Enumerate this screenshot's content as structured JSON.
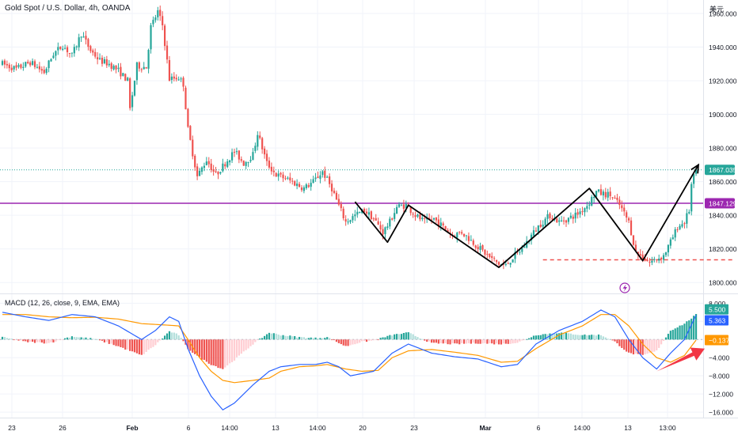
{
  "header": {
    "symbol_title": "Gold Spot / U.S. Dollar, 4h, OANDA",
    "currency": "美元"
  },
  "colors": {
    "up": "#26a69a",
    "down": "#ef5350",
    "up_soft": "#b2dfdb",
    "down_soft": "#ffcdd2",
    "macd_line": "#2962ff",
    "signal_line": "#ff9800",
    "level": "#9c27b0",
    "grid": "#f0f3fa"
  },
  "chart_data": [
    {
      "type": "candlestick",
      "title": "Gold Spot / U.S. Dollar, 4h, OANDA",
      "x_tick_labels": [
        "23",
        "26",
        "Feb",
        "6",
        "14:00",
        "13",
        "14:00",
        "20",
        "23",
        "Mar",
        "6",
        "14:00",
        "13",
        "13:00"
      ],
      "y_ticks": [
        1800,
        1820,
        1840,
        1860,
        1880,
        1900,
        1920,
        1940,
        1960
      ],
      "y_tick_labels": [
        "1800.000",
        "1820.000",
        "1840.000",
        "1860.000",
        "1880.000",
        "1900.000",
        "1920.000",
        "1940.000",
        "1960.000"
      ],
      "ylim": [
        1794,
        1968
      ],
      "price_path": [
        [
          0,
          1930
        ],
        [
          6,
          1927
        ],
        [
          12,
          1931
        ],
        [
          18,
          1925
        ],
        [
          22,
          1936
        ],
        [
          26,
          1941
        ],
        [
          30,
          1935
        ],
        [
          34,
          1948
        ],
        [
          38,
          1938
        ],
        [
          42,
          1932
        ],
        [
          46,
          1930
        ],
        [
          50,
          1926
        ],
        [
          54,
          1920
        ],
        [
          55,
          1903
        ],
        [
          58,
          1929
        ],
        [
          62,
          1928
        ],
        [
          64,
          1952
        ],
        [
          67,
          1961
        ],
        [
          69,
          1953
        ],
        [
          72,
          1921
        ],
        [
          76,
          1922
        ],
        [
          78,
          1918
        ],
        [
          80,
          1891
        ],
        [
          84,
          1863
        ],
        [
          88,
          1873
        ],
        [
          92,
          1864
        ],
        [
          96,
          1871
        ],
        [
          100,
          1878
        ],
        [
          104,
          1871
        ],
        [
          108,
          1876
        ],
        [
          110,
          1889
        ],
        [
          114,
          1871
        ],
        [
          118,
          1864
        ],
        [
          122,
          1862
        ],
        [
          126,
          1859
        ],
        [
          130,
          1856
        ],
        [
          134,
          1860
        ],
        [
          138,
          1866
        ],
        [
          142,
          1856
        ],
        [
          144,
          1849
        ],
        [
          148,
          1836
        ],
        [
          152,
          1840
        ],
        [
          156,
          1843
        ],
        [
          160,
          1838
        ],
        [
          164,
          1830
        ],
        [
          167,
          1836
        ],
        [
          170,
          1845
        ],
        [
          174,
          1846
        ],
        [
          178,
          1840
        ],
        [
          182,
          1836
        ],
        [
          186,
          1838
        ],
        [
          190,
          1833
        ],
        [
          194,
          1828
        ],
        [
          198,
          1830
        ],
        [
          202,
          1825
        ],
        [
          206,
          1820
        ],
        [
          210,
          1815
        ],
        [
          214,
          1811
        ],
        [
          217,
          1810
        ],
        [
          220,
          1815
        ],
        [
          224,
          1820
        ],
        [
          228,
          1828
        ],
        [
          232,
          1835
        ],
        [
          236,
          1840
        ],
        [
          240,
          1836
        ],
        [
          244,
          1838
        ],
        [
          248,
          1841
        ],
        [
          252,
          1846
        ],
        [
          256,
          1854
        ],
        [
          258,
          1853
        ],
        [
          262,
          1852
        ],
        [
          266,
          1846
        ],
        [
          270,
          1836
        ],
        [
          273,
          1818
        ],
        [
          276,
          1815
        ],
        [
          279,
          1812
        ],
        [
          282,
          1814
        ],
        [
          285,
          1816
        ],
        [
          288,
          1824
        ],
        [
          291,
          1833
        ],
        [
          294,
          1836
        ],
        [
          296,
          1843
        ],
        [
          297,
          1858
        ],
        [
          299,
          1867.035
        ]
      ],
      "price_scale_labels": [
        {
          "value": 1867.035,
          "text": "1867.035",
          "color": "#26a69a"
        },
        {
          "value": 1847.129,
          "text": "1847.129",
          "color": "#9c27b0"
        }
      ],
      "horizontal_lines": [
        {
          "value": 1847.129,
          "style": "solid",
          "color": "#9c27b0"
        },
        {
          "value": 1867.035,
          "style": "dotted",
          "color": "#26a69a"
        },
        {
          "value": 1813.5,
          "style": "dashed",
          "color": "#ef5350",
          "from_index": 233,
          "to_index": 315
        }
      ],
      "annotation_path": [
        [
          152,
          1848
        ],
        [
          166,
          1824
        ],
        [
          175,
          1846
        ],
        [
          214,
          1809
        ],
        [
          253,
          1856
        ],
        [
          276,
          1813
        ],
        [
          300,
          1870
        ]
      ]
    },
    {
      "type": "line+bar",
      "title": "MACD (12, 26, close, 9, EMA, EMA)",
      "y_ticks": [
        8,
        4,
        0,
        -4,
        -8,
        -12,
        -16
      ],
      "y_tick_labels": [
        "8.000",
        "4.000",
        "",
        "−4.000",
        "−8.000",
        "−12.000",
        "−16.000"
      ],
      "ylim": [
        -17.2,
        9.8
      ],
      "value_labels": [
        {
          "value": 5.5,
          "text": "5.500",
          "color": "#26a69a"
        },
        {
          "value": 5.363,
          "text": "5.363",
          "color": "#2962ff"
        },
        {
          "value": -0.137,
          "text": "−0.137",
          "color": "#ff9800"
        }
      ],
      "macd_path": [
        [
          0,
          6
        ],
        [
          10,
          5
        ],
        [
          20,
          4.2
        ],
        [
          30,
          5.5
        ],
        [
          40,
          5
        ],
        [
          50,
          3
        ],
        [
          60,
          0
        ],
        [
          66,
          2
        ],
        [
          72,
          5
        ],
        [
          76,
          4
        ],
        [
          80,
          -2
        ],
        [
          85,
          -8
        ],
        [
          90,
          -12.5
        ],
        [
          95,
          -15.5
        ],
        [
          100,
          -14
        ],
        [
          108,
          -10
        ],
        [
          115,
          -7
        ],
        [
          120,
          -6
        ],
        [
          128,
          -5.5
        ],
        [
          135,
          -5.5
        ],
        [
          140,
          -5
        ],
        [
          145,
          -6
        ],
        [
          150,
          -8
        ],
        [
          155,
          -7.5
        ],
        [
          160,
          -7
        ],
        [
          168,
          -3
        ],
        [
          175,
          -1
        ],
        [
          185,
          -3
        ],
        [
          195,
          -3.8
        ],
        [
          205,
          -4.3
        ],
        [
          215,
          -6
        ],
        [
          222,
          -5.5
        ],
        [
          230,
          -1
        ],
        [
          240,
          2
        ],
        [
          250,
          4
        ],
        [
          258,
          6.5
        ],
        [
          264,
          5
        ],
        [
          270,
          0
        ],
        [
          276,
          -4
        ],
        [
          282,
          -6.5
        ],
        [
          288,
          -3
        ],
        [
          294,
          0
        ],
        [
          299,
          5.363
        ]
      ],
      "signal_path": [
        [
          0,
          5.5
        ],
        [
          10,
          5.5
        ],
        [
          20,
          5
        ],
        [
          30,
          4.8
        ],
        [
          40,
          4.9
        ],
        [
          50,
          4.5
        ],
        [
          60,
          3.5
        ],
        [
          70,
          3.2
        ],
        [
          76,
          3
        ],
        [
          80,
          0
        ],
        [
          85,
          -4
        ],
        [
          90,
          -7
        ],
        [
          95,
          -9
        ],
        [
          100,
          -9.5
        ],
        [
          108,
          -9
        ],
        [
          115,
          -8.5
        ],
        [
          120,
          -7
        ],
        [
          128,
          -6
        ],
        [
          135,
          -5.8
        ],
        [
          140,
          -5.5
        ],
        [
          148,
          -6.5
        ],
        [
          155,
          -7
        ],
        [
          162,
          -6.8
        ],
        [
          168,
          -4
        ],
        [
          175,
          -2.5
        ],
        [
          185,
          -2.2
        ],
        [
          195,
          -2.8
        ],
        [
          205,
          -3.5
        ],
        [
          215,
          -5
        ],
        [
          222,
          -4.8
        ],
        [
          230,
          -2
        ],
        [
          240,
          1
        ],
        [
          250,
          3
        ],
        [
          258,
          5.5
        ],
        [
          264,
          5.5
        ],
        [
          270,
          3
        ],
        [
          276,
          -1
        ],
        [
          282,
          -4
        ],
        [
          288,
          -5
        ],
        [
          294,
          -3.5
        ],
        [
          299,
          -0.137
        ]
      ],
      "histogram_path": [
        [
          0,
          0.5
        ],
        [
          10,
          -0.5
        ],
        [
          20,
          -0.8
        ],
        [
          30,
          0.7
        ],
        [
          40,
          0.1
        ],
        [
          50,
          -1.5
        ],
        [
          60,
          -3.5
        ],
        [
          66,
          -1.2
        ],
        [
          72,
          1.8
        ],
        [
          76,
          1
        ],
        [
          80,
          -2
        ],
        [
          85,
          -4
        ],
        [
          90,
          -5.5
        ],
        [
          95,
          -6.5
        ],
        [
          100,
          -4.5
        ],
        [
          108,
          -1
        ],
        [
          115,
          1.5
        ],
        [
          120,
          1
        ],
        [
          128,
          0.5
        ],
        [
          135,
          0.3
        ],
        [
          140,
          0.5
        ],
        [
          148,
          -1.5
        ],
        [
          155,
          -0.5
        ],
        [
          160,
          -0.2
        ],
        [
          168,
          1
        ],
        [
          175,
          1.5
        ],
        [
          185,
          -0.8
        ],
        [
          195,
          -1
        ],
        [
          205,
          -0.8
        ],
        [
          215,
          -1
        ],
        [
          222,
          -0.7
        ],
        [
          230,
          1
        ],
        [
          240,
          1.5
        ],
        [
          250,
          1
        ],
        [
          258,
          1
        ],
        [
          264,
          -0.5
        ],
        [
          270,
          -3
        ],
        [
          276,
          -3.5
        ],
        [
          282,
          -2.5
        ],
        [
          288,
          2
        ],
        [
          294,
          3.5
        ],
        [
          299,
          5.5
        ]
      ],
      "annotation_arrow": [
        [
          282,
          -7
        ],
        [
          300,
          -2
        ]
      ]
    }
  ]
}
